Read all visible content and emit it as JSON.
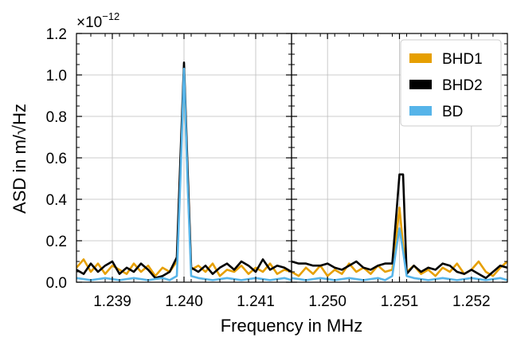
{
  "chart_data": [
    {
      "type": "line",
      "panel": "left",
      "xlabel": "Frequency in MHz",
      "ylabel": "ASD in m/√Hz",
      "y_multiplier": {
        "base": "×10",
        "exponent": "−12"
      },
      "xlim": [
        1.2385,
        1.2415
      ],
      "ylim": [
        0.0,
        1.2
      ],
      "x_ticks": [
        1.239,
        1.24,
        1.241
      ],
      "x_tick_labels": [
        "1.239",
        "1.240",
        "1.241"
      ],
      "y_ticks": [
        0.0,
        0.2,
        0.4,
        0.6,
        0.8,
        1.0,
        1.2
      ],
      "y_tick_labels": [
        "0.0",
        "0.2",
        "0.4",
        "0.6",
        "0.8",
        "1.0",
        "1.2"
      ],
      "grid": true,
      "series": [
        {
          "name": "BHD1",
          "color": "#E69F00",
          "x": [
            1.2385,
            1.2386,
            1.2387,
            1.2388,
            1.2389,
            1.239,
            1.2391,
            1.2392,
            1.2393,
            1.2394,
            1.2395,
            1.2396,
            1.2397,
            1.2398,
            1.2399,
            1.23995,
            1.24,
            1.24005,
            1.2401,
            1.2402,
            1.2403,
            1.2404,
            1.2405,
            1.2406,
            1.2407,
            1.2408,
            1.2409,
            1.241,
            1.2411,
            1.2412,
            1.2413,
            1.2414,
            1.2415
          ],
          "y": [
            0.07,
            0.11,
            0.05,
            0.09,
            0.04,
            0.08,
            0.06,
            0.04,
            0.09,
            0.05,
            0.08,
            0.03,
            0.07,
            0.05,
            0.1,
            0.55,
            1.02,
            0.5,
            0.06,
            0.08,
            0.05,
            0.09,
            0.03,
            0.06,
            0.05,
            0.08,
            0.04,
            0.07,
            0.05,
            0.09,
            0.04,
            0.06,
            0.05
          ]
        },
        {
          "name": "BHD2",
          "color": "#000000",
          "x": [
            1.2385,
            1.2386,
            1.2387,
            1.2388,
            1.2389,
            1.239,
            1.2391,
            1.2392,
            1.2393,
            1.2394,
            1.2395,
            1.2396,
            1.2397,
            1.2398,
            1.2399,
            1.23995,
            1.24,
            1.24005,
            1.2401,
            1.2402,
            1.2403,
            1.2404,
            1.2405,
            1.2406,
            1.2407,
            1.2408,
            1.2409,
            1.241,
            1.2411,
            1.2412,
            1.2413,
            1.2414,
            1.2415
          ],
          "y": [
            0.06,
            0.04,
            0.09,
            0.05,
            0.08,
            0.1,
            0.04,
            0.07,
            0.05,
            0.09,
            0.06,
            0.02,
            0.03,
            0.05,
            0.12,
            0.6,
            1.06,
            0.55,
            0.07,
            0.05,
            0.08,
            0.04,
            0.07,
            0.09,
            0.06,
            0.1,
            0.08,
            0.05,
            0.11,
            0.06,
            0.08,
            0.07,
            0.05
          ]
        },
        {
          "name": "BD",
          "color": "#56B4E9",
          "x": [
            1.2385,
            1.2387,
            1.2389,
            1.2391,
            1.2393,
            1.2395,
            1.2397,
            1.2398,
            1.2399,
            1.23995,
            1.24,
            1.24005,
            1.2401,
            1.2402,
            1.2404,
            1.2406,
            1.2408,
            1.241,
            1.2412,
            1.2414,
            1.2415
          ],
          "y": [
            0.02,
            0.01,
            0.02,
            0.01,
            0.02,
            0.01,
            0.02,
            0.01,
            0.03,
            0.5,
            1.03,
            0.48,
            0.03,
            0.02,
            0.01,
            0.02,
            0.01,
            0.02,
            0.01,
            0.02,
            0.01
          ]
        }
      ]
    },
    {
      "type": "line",
      "panel": "right",
      "xlim": [
        1.2495,
        1.2525
      ],
      "ylim": [
        0.0,
        1.2
      ],
      "x_ticks": [
        1.25,
        1.251,
        1.252
      ],
      "x_tick_labels": [
        "1.250",
        "1.251",
        "1.252"
      ],
      "grid": true,
      "series": [
        {
          "name": "BHD1",
          "color": "#E69F00",
          "x": [
            1.2495,
            1.2496,
            1.2497,
            1.2498,
            1.2499,
            1.25,
            1.2501,
            1.2502,
            1.2503,
            1.2504,
            1.2505,
            1.2506,
            1.2507,
            1.2508,
            1.2509,
            1.25095,
            1.251,
            1.25105,
            1.2511,
            1.2512,
            1.2513,
            1.2514,
            1.2515,
            1.2516,
            1.2517,
            1.2518,
            1.2519,
            1.252,
            1.2521,
            1.2522,
            1.2523,
            1.2524,
            1.2525
          ],
          "y": [
            0.05,
            0.03,
            0.07,
            0.04,
            0.08,
            0.03,
            0.06,
            0.04,
            0.09,
            0.05,
            0.07,
            0.04,
            0.08,
            0.05,
            0.06,
            0.2,
            0.36,
            0.18,
            0.05,
            0.08,
            0.04,
            0.06,
            0.03,
            0.07,
            0.05,
            0.09,
            0.04,
            0.06,
            0.1,
            0.05,
            0.03,
            0.07,
            0.1
          ]
        },
        {
          "name": "BHD2",
          "color": "#000000",
          "x": [
            1.2495,
            1.2496,
            1.2497,
            1.2498,
            1.2499,
            1.25,
            1.2501,
            1.2502,
            1.2503,
            1.2504,
            1.2505,
            1.2506,
            1.2507,
            1.2508,
            1.2509,
            1.25095,
            1.251,
            1.25105,
            1.2511,
            1.2512,
            1.2513,
            1.2514,
            1.2515,
            1.2516,
            1.2517,
            1.2518,
            1.2519,
            1.252,
            1.2521,
            1.2522,
            1.2523,
            1.2524,
            1.2525
          ],
          "y": [
            0.1,
            0.09,
            0.09,
            0.08,
            0.08,
            0.09,
            0.07,
            0.06,
            0.08,
            0.1,
            0.07,
            0.06,
            0.08,
            0.09,
            0.09,
            0.3,
            0.52,
            0.52,
            0.04,
            0.08,
            0.05,
            0.07,
            0.06,
            0.09,
            0.08,
            0.05,
            0.04,
            0.06,
            0.04,
            0.02,
            0.05,
            0.08,
            0.07
          ]
        },
        {
          "name": "BD",
          "color": "#56B4E9",
          "x": [
            1.2495,
            1.2497,
            1.2499,
            1.2501,
            1.2503,
            1.2505,
            1.2507,
            1.2508,
            1.2509,
            1.25095,
            1.251,
            1.25105,
            1.2511,
            1.2512,
            1.2514,
            1.2516,
            1.2518,
            1.252,
            1.2522,
            1.2524,
            1.2525
          ],
          "y": [
            0.02,
            0.01,
            0.02,
            0.01,
            0.02,
            0.01,
            0.02,
            0.01,
            0.03,
            0.15,
            0.26,
            0.15,
            0.03,
            0.02,
            0.01,
            0.02,
            0.01,
            0.02,
            0.01,
            0.02,
            0.01
          ]
        }
      ]
    }
  ],
  "legend": {
    "placement": "top-right",
    "entries": [
      {
        "label": "BHD1",
        "color": "#E69F00"
      },
      {
        "label": "BHD2",
        "color": "#000000"
      },
      {
        "label": "BD",
        "color": "#56B4E9"
      }
    ]
  }
}
